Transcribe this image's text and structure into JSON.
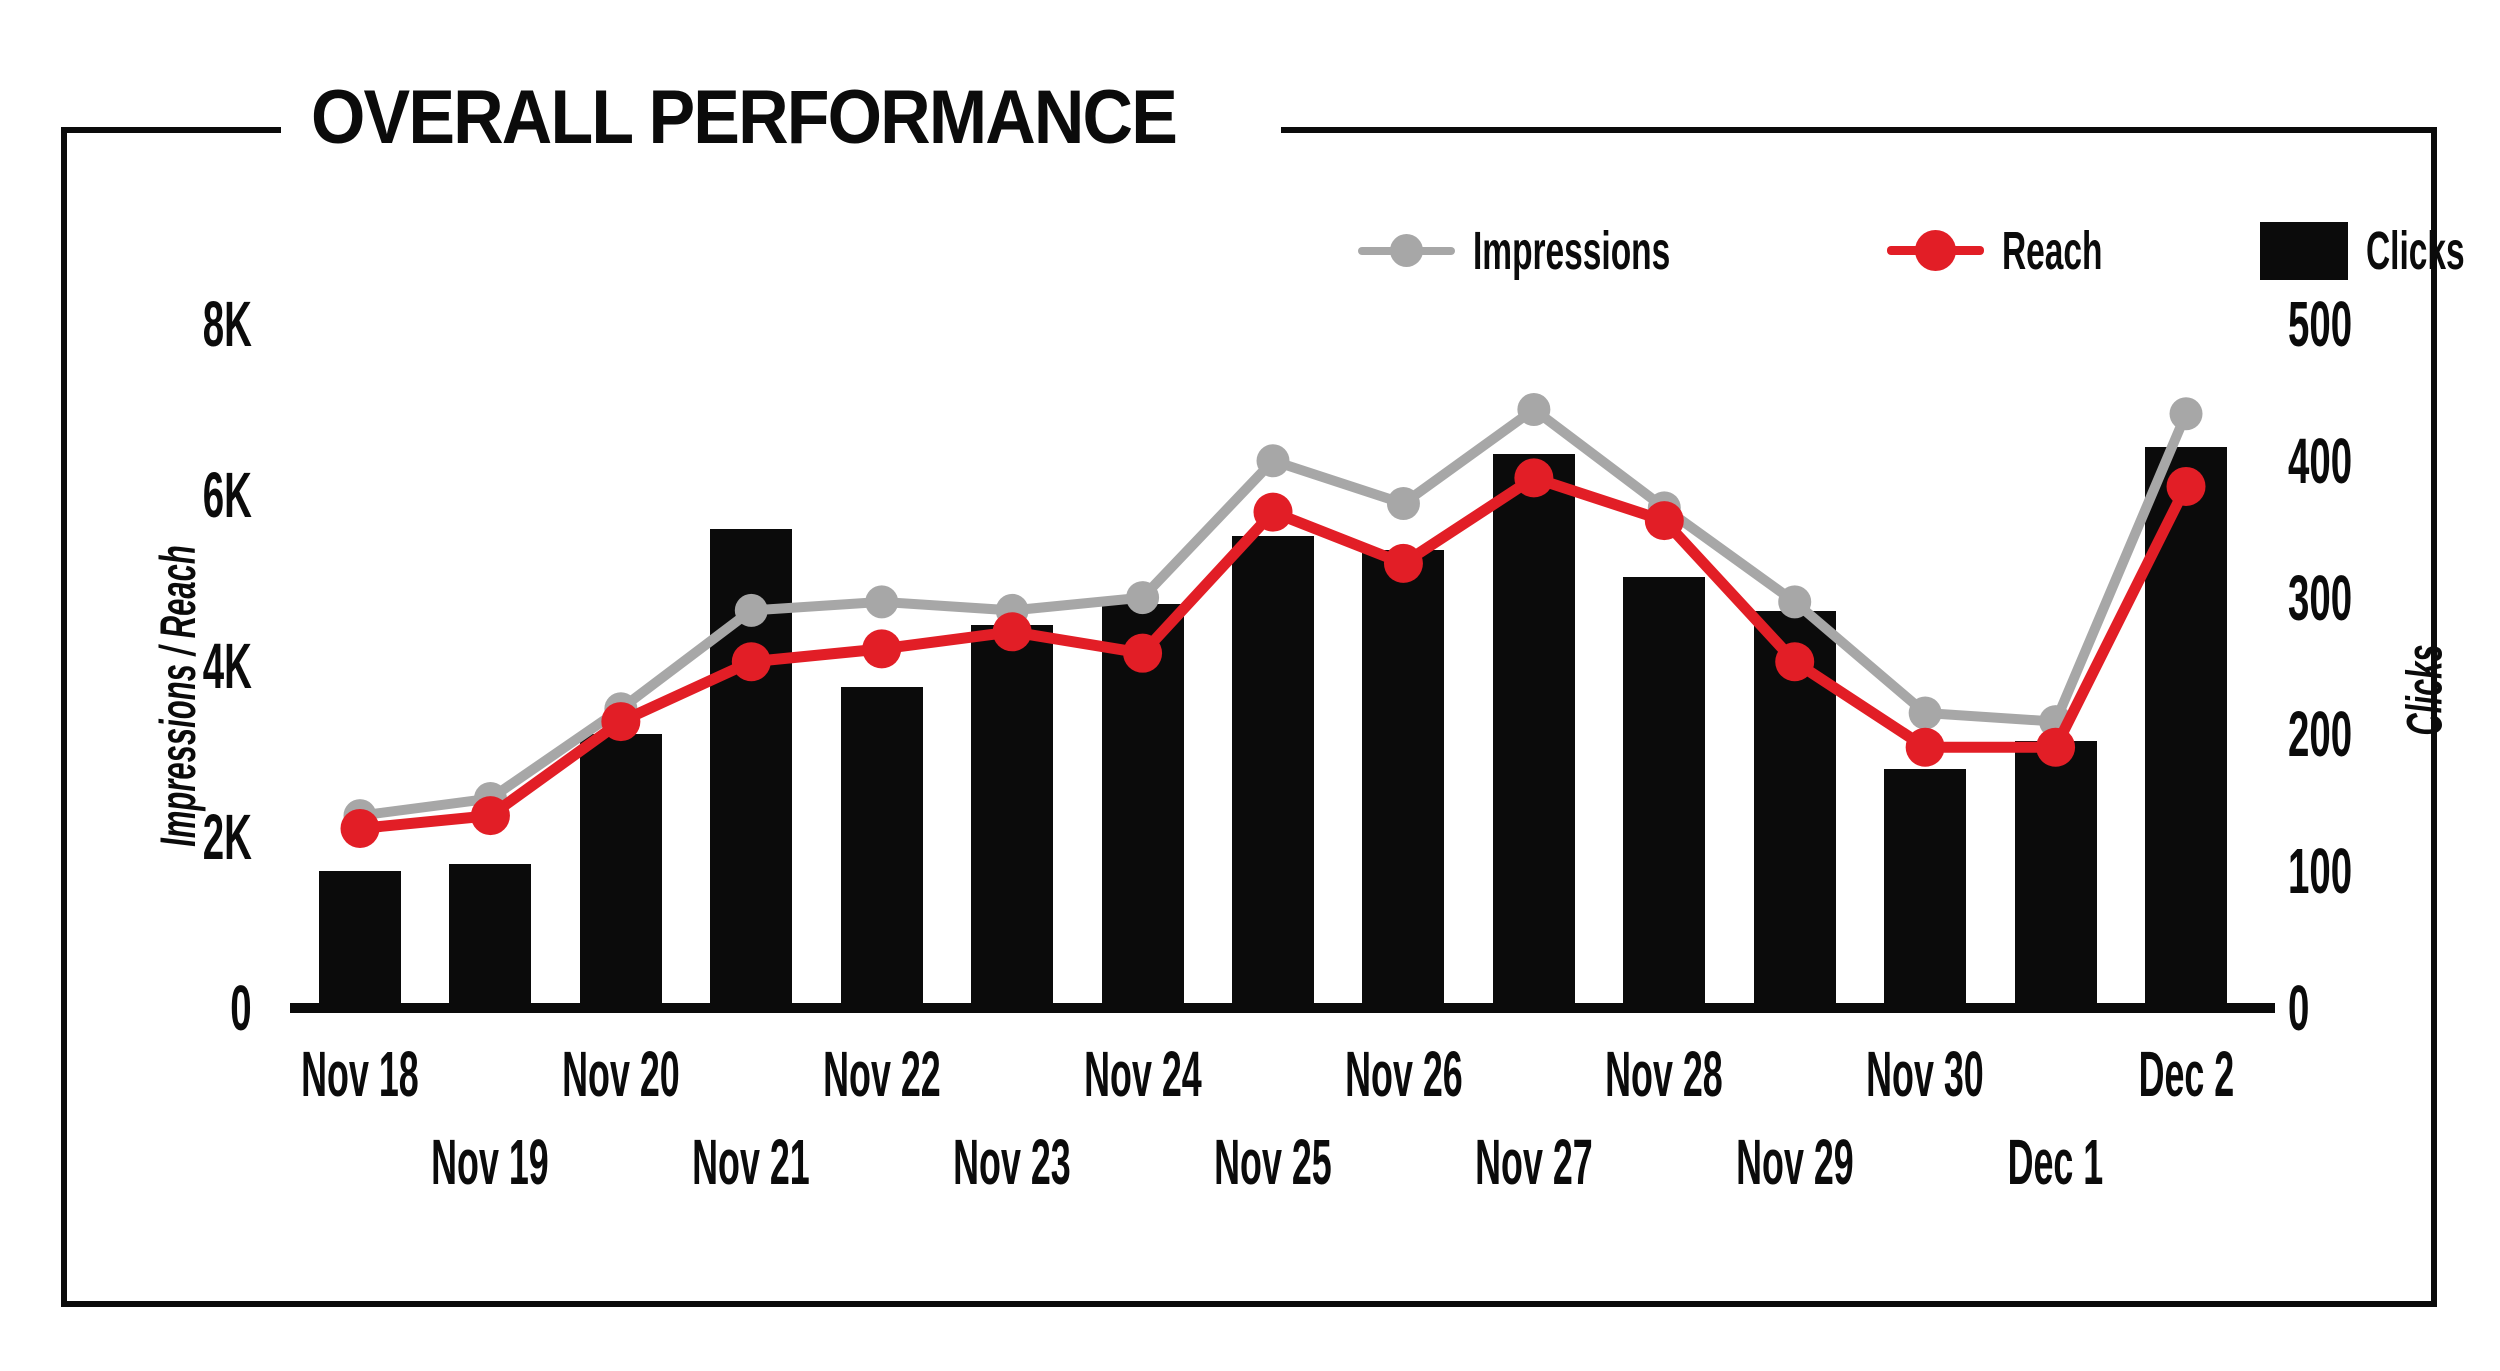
{
  "title": "OVERALL PERFORMANCE",
  "legend": {
    "items": [
      {
        "label": "Impressions",
        "marker": "gray-line-dot-icon",
        "color": "#a7a7a7"
      },
      {
        "label": "Reach",
        "marker": "red-line-dot-icon",
        "color": "#e21e26"
      },
      {
        "label": "Clicks",
        "marker": "black-square-icon",
        "color": "#0b0b0b"
      }
    ]
  },
  "chart_data": {
    "type": "combo (bar + line)",
    "title": "OVERALL PERFORMANCE",
    "grid": "off",
    "legend_position": "top-right",
    "categories": [
      "Nov 18",
      "Nov 19",
      "Nov 20",
      "Nov 21",
      "Nov 22",
      "Nov 23",
      "Nov 24",
      "Nov 25",
      "Nov 26",
      "Nov 27",
      "Nov 28",
      "Nov 29",
      "Nov 30",
      "Dec 1",
      "Dec 2"
    ],
    "left_axis": {
      "label": "Impressions / Reach",
      "tick_labels": [
        "0",
        "2K",
        "4K",
        "6K",
        "8K"
      ],
      "tick_values": [
        0,
        2000,
        4000,
        6000,
        8000
      ],
      "range": [
        0,
        8000
      ]
    },
    "right_axis": {
      "label": "Clicks",
      "tick_labels": [
        "0",
        "100",
        "200",
        "300",
        "400",
        "500"
      ],
      "tick_values": [
        0,
        100,
        200,
        300,
        400,
        500
      ],
      "range": [
        0,
        500
      ]
    },
    "series": [
      {
        "name": "Impressions",
        "type": "line",
        "axis": "left",
        "color": "#a7a7a7",
        "values": [
          2250,
          2450,
          3500,
          4650,
          4750,
          4650,
          4800,
          6400,
          5900,
          7000,
          5850,
          4750,
          3450,
          3350,
          6950
        ]
      },
      {
        "name": "Reach",
        "type": "line",
        "axis": "left",
        "color": "#e21e26",
        "values": [
          2100,
          2250,
          3350,
          4050,
          4200,
          4400,
          4150,
          5800,
          5200,
          6200,
          5700,
          4050,
          3050,
          3050,
          6100
        ]
      },
      {
        "name": "Clicks",
        "type": "bar",
        "axis": "right",
        "color": "#0b0b0b",
        "values": [
          100,
          105,
          200,
          350,
          235,
          280,
          295,
          345,
          335,
          405,
          315,
          290,
          175,
          195,
          410
        ]
      }
    ]
  }
}
